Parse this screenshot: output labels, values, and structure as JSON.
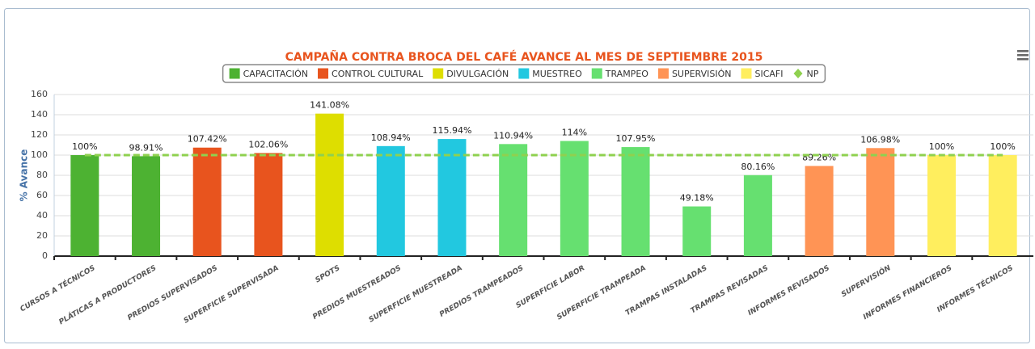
{
  "chart_data": {
    "type": "bar",
    "title": "CAMPAÑA CONTRA BROCA DEL CAFÉ AVANCE AL MES DE SEPTIEMBRE 2015",
    "y_label": "% Avance",
    "categories": [
      "CURSOS A TÉCNICOS",
      "PLÁTICAS A PRODUCTORES",
      "PREDIOS SUPERVISADOS",
      "SUPERFICIE SUPERVISADA",
      "SPOTS",
      "PREDIOS MUESTREADOS",
      "SUPERFICIE MUESTREADA",
      "PREDIOS TRAMPEADOS",
      "SUPERFICIE LABOR",
      "SUPERFICIE TRAMPEADA",
      "TRAMPAS INSTALADAS",
      "TRAMPAS REVISADAS",
      "INFORMES REVISADOS",
      "SUPERVISIÓN",
      "INFORMES FINANCIEROS",
      "INFORMES TÉCNICOS"
    ],
    "series": [
      {
        "name": "CAPACITACIÓN",
        "color": "#4db232",
        "values": [
          100,
          98.91,
          null,
          null,
          null,
          null,
          null,
          null,
          null,
          null,
          null,
          null,
          null,
          null,
          null,
          null
        ],
        "value_labels": [
          "100%",
          "98.91%",
          null,
          null,
          null,
          null,
          null,
          null,
          null,
          null,
          null,
          null,
          null,
          null,
          null,
          null
        ]
      },
      {
        "name": "CONTROL CULTURAL",
        "color": "#e8541e",
        "values": [
          null,
          null,
          107.42,
          102.06,
          null,
          null,
          null,
          null,
          null,
          null,
          null,
          null,
          null,
          null,
          null,
          null
        ],
        "value_labels": [
          null,
          null,
          "107.42%",
          "102.06%",
          null,
          null,
          null,
          null,
          null,
          null,
          null,
          null,
          null,
          null,
          null,
          null
        ]
      },
      {
        "name": "DIVULGACIÓN",
        "color": "#dede00",
        "values": [
          null,
          null,
          null,
          null,
          141.08,
          null,
          null,
          null,
          null,
          null,
          null,
          null,
          null,
          null,
          null,
          null
        ],
        "value_labels": [
          null,
          null,
          null,
          null,
          "141.08%",
          null,
          null,
          null,
          null,
          null,
          null,
          null,
          null,
          null,
          null,
          null
        ]
      },
      {
        "name": "MUESTREO",
        "color": "#22c8e0",
        "values": [
          null,
          null,
          null,
          null,
          null,
          108.94,
          115.94,
          null,
          null,
          null,
          null,
          null,
          null,
          null,
          null,
          null
        ],
        "value_labels": [
          null,
          null,
          null,
          null,
          null,
          "108.94%",
          "115.94%",
          null,
          null,
          null,
          null,
          null,
          null,
          null,
          null,
          null
        ]
      },
      {
        "name": "TRAMPEO",
        "color": "#66e070",
        "values": [
          null,
          null,
          null,
          null,
          null,
          null,
          null,
          110.94,
          114,
          107.95,
          49.18,
          80.16,
          null,
          null,
          null,
          null
        ],
        "value_labels": [
          null,
          null,
          null,
          null,
          null,
          null,
          null,
          "110.94%",
          "114%",
          "107.95%",
          "49.18%",
          "80.16%",
          null,
          null,
          null,
          null
        ]
      },
      {
        "name": "SUPERVISIÓN",
        "color": "#ff9455",
        "values": [
          null,
          null,
          null,
          null,
          null,
          null,
          null,
          null,
          null,
          null,
          null,
          null,
          89.26,
          106.98,
          null,
          null
        ],
        "value_labels": [
          null,
          null,
          null,
          null,
          null,
          null,
          null,
          null,
          null,
          null,
          null,
          null,
          "89.26%",
          "106.98%",
          null,
          null
        ]
      },
      {
        "name": "SICAFI",
        "color": "#ffee5e",
        "values": [
          null,
          null,
          null,
          null,
          null,
          null,
          null,
          null,
          null,
          null,
          null,
          null,
          null,
          null,
          100,
          100
        ],
        "value_labels": [
          null,
          null,
          null,
          null,
          null,
          null,
          null,
          null,
          null,
          null,
          null,
          null,
          null,
          null,
          "100%",
          "100%"
        ]
      },
      {
        "name": "NP",
        "type": "line",
        "color": "#8fd14f",
        "values": [
          100,
          100,
          100,
          100,
          100,
          100,
          100,
          100,
          100,
          100,
          100,
          100,
          100,
          100,
          100,
          100
        ]
      }
    ],
    "ylim": [
      0,
      160
    ],
    "yticks": [
      0,
      20,
      40,
      60,
      80,
      100,
      120,
      140,
      160
    ],
    "grid": true
  }
}
